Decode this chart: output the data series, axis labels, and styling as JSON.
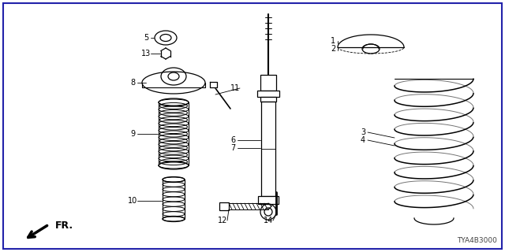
{
  "background_color": "#ffffff",
  "border_color": "#2222aa",
  "diagram_code": "TYA4B3000",
  "fr_label": "FR.",
  "fig_w": 6.4,
  "fig_h": 3.2,
  "dpi": 100
}
